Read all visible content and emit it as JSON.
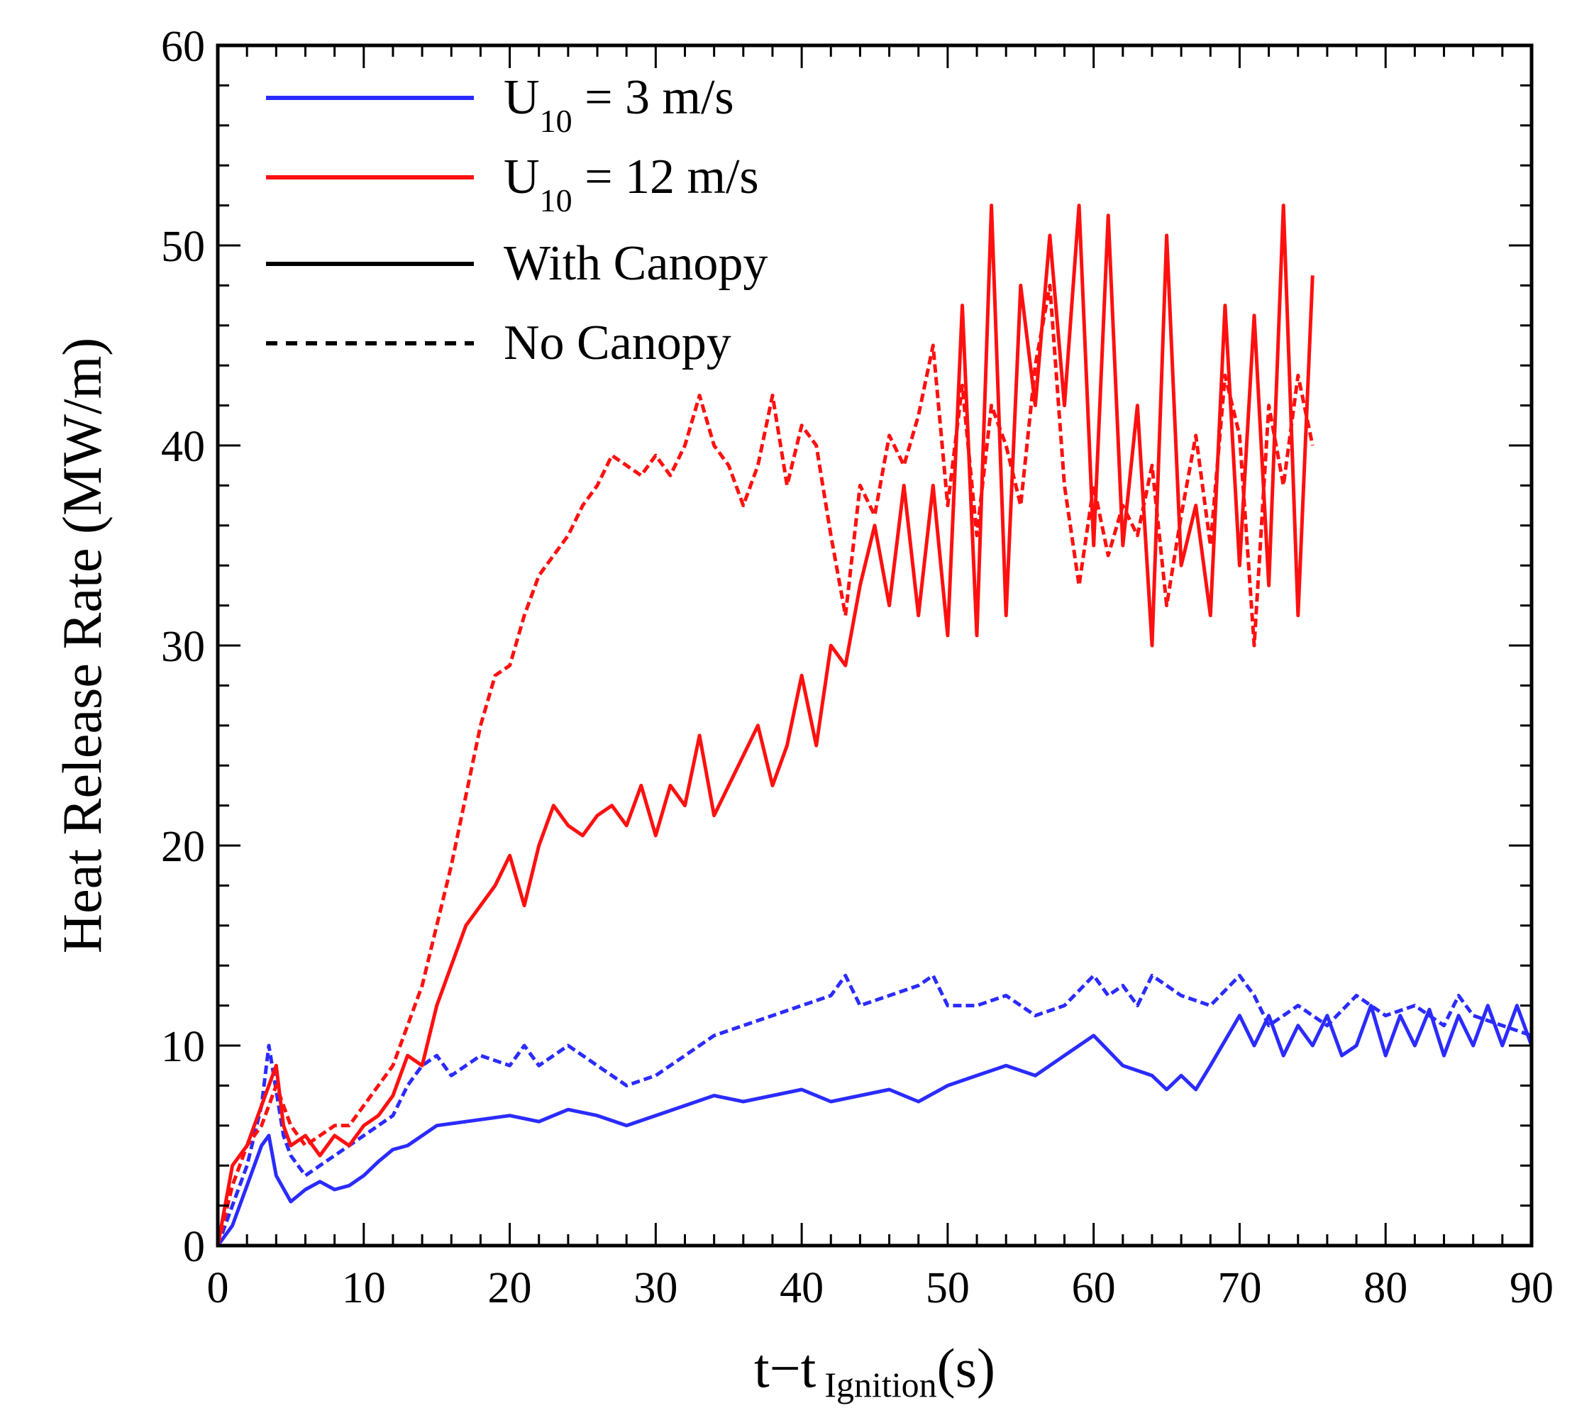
{
  "chart_data": {
    "type": "line",
    "title": "",
    "ylabel": "Heat Release Rate (MW/m)",
    "xlabel": {
      "main": "t−t",
      "sub": "Ignition",
      "unit": "(s)"
    },
    "xlim": [
      0,
      90
    ],
    "ylim": [
      0,
      60
    ],
    "xticks": [
      "0",
      "10",
      "20",
      "30",
      "40",
      "50",
      "60",
      "70",
      "80",
      "90"
    ],
    "yticks": [
      "0",
      "10",
      "20",
      "30",
      "40",
      "50",
      "60"
    ],
    "grid": false,
    "legend_position": "top-left",
    "colors": {
      "low_wind": "#2b2bff",
      "high_wind": "#ff1010",
      "axis": "#000000"
    },
    "legend": [
      {
        "style": "solid",
        "color": "#2b2bff",
        "base": "U",
        "sub": "10",
        "text": " = 3  m/s"
      },
      {
        "style": "solid",
        "color": "#ff1010",
        "base": "U",
        "sub": "10",
        "text": " = 12  m/s"
      },
      {
        "style": "solid",
        "color": "#000000",
        "base": "With Canopy",
        "sub": "",
        "text": ""
      },
      {
        "style": "dashed",
        "color": "#000000",
        "base": "No Canopy",
        "sub": "",
        "text": ""
      }
    ],
    "series": [
      {
        "name": "U10 = 3 m/s, With Canopy",
        "color": "#2b2bff",
        "dash": false,
        "x": [
          0,
          1,
          2,
          3,
          3.5,
          4,
          5,
          6,
          7,
          8,
          9,
          10,
          11,
          12,
          13,
          14,
          15,
          17,
          20,
          22,
          24,
          26,
          28,
          30,
          32,
          34,
          36,
          38,
          40,
          42,
          44,
          46,
          48,
          50,
          52,
          54,
          56,
          58,
          60,
          62,
          64,
          65,
          66,
          67,
          68,
          70,
          71,
          72,
          73,
          74,
          75,
          76,
          77,
          78,
          79,
          80,
          81,
          82,
          83,
          84,
          85,
          86,
          87,
          88,
          89,
          90
        ],
        "y": [
          0,
          1,
          3,
          5,
          5.5,
          3.5,
          2.2,
          2.8,
          3.2,
          2.8,
          3.0,
          3.5,
          4.2,
          4.8,
          5.0,
          5.5,
          6.0,
          6.2,
          6.5,
          6.2,
          6.8,
          6.5,
          6.0,
          6.5,
          7.0,
          7.5,
          7.2,
          7.5,
          7.8,
          7.2,
          7.5,
          7.8,
          7.2,
          8.0,
          8.5,
          9.0,
          8.5,
          9.5,
          10.5,
          9.0,
          8.5,
          7.8,
          8.5,
          7.8,
          9.0,
          11.5,
          10.0,
          11.5,
          9.5,
          11.0,
          10.0,
          11.5,
          9.5,
          10.0,
          12.0,
          9.5,
          11.5,
          10.0,
          11.8,
          9.5,
          11.5,
          10.0,
          12.0,
          10.0,
          12.0,
          10.0
        ]
      },
      {
        "name": "U10 = 3 m/s, No Canopy",
        "color": "#2b2bff",
        "dash": true,
        "x": [
          0,
          1,
          2,
          3,
          3.5,
          4.5,
          5,
          6,
          7,
          8,
          9,
          10,
          12,
          13,
          14,
          15,
          16,
          18,
          20,
          21,
          22,
          24,
          26,
          28,
          30,
          32,
          34,
          36,
          38,
          40,
          42,
          43,
          44,
          46,
          48,
          49,
          50,
          52,
          54,
          56,
          58,
          60,
          61,
          62,
          63,
          64,
          66,
          68,
          70,
          71,
          72,
          74,
          76,
          78,
          80,
          82,
          84,
          85,
          86,
          88,
          90
        ],
        "y": [
          0,
          2,
          4,
          7,
          10,
          5.5,
          4.5,
          3.5,
          4.0,
          4.5,
          5.0,
          5.5,
          6.5,
          8.0,
          9.0,
          9.5,
          8.5,
          9.5,
          9.0,
          10.0,
          9.0,
          10.0,
          9.0,
          8.0,
          8.5,
          9.5,
          10.5,
          11.0,
          11.5,
          12.0,
          12.5,
          13.5,
          12.0,
          12.5,
          13.0,
          13.5,
          12.0,
          12.0,
          12.5,
          11.5,
          12.0,
          13.5,
          12.5,
          13.0,
          12.0,
          13.5,
          12.5,
          12.0,
          13.5,
          12.5,
          11.0,
          12.0,
          11.0,
          12.5,
          11.5,
          12.0,
          11.0,
          12.5,
          11.5,
          11.0,
          10.5
        ]
      },
      {
        "name": "U10 = 12 m/s, With Canopy",
        "color": "#ff1010",
        "dash": false,
        "x": [
          0,
          1,
          2,
          3,
          4,
          4.5,
          5,
          6,
          7,
          8,
          9,
          10,
          11,
          12,
          13,
          14,
          15,
          16,
          17,
          18,
          19,
          20,
          21,
          22,
          23,
          24,
          25,
          26,
          27,
          28,
          29,
          30,
          31,
          32,
          33,
          34,
          35,
          36,
          37,
          38,
          39,
          40,
          41,
          42,
          43,
          44,
          45,
          46,
          47,
          48,
          49,
          50,
          51,
          52,
          53,
          54,
          55,
          56,
          57,
          58,
          59,
          60,
          61,
          62,
          63,
          64,
          65,
          66,
          67,
          68,
          69,
          70,
          71,
          72,
          73,
          74,
          75
        ],
        "y": [
          0,
          4,
          5,
          7,
          9,
          6,
          5,
          5.5,
          4.5,
          5.5,
          5.0,
          6.0,
          6.5,
          7.5,
          9.5,
          9.0,
          12.0,
          14.0,
          16.0,
          17.0,
          18.0,
          19.5,
          17.0,
          20.0,
          22.0,
          21.0,
          20.5,
          21.5,
          22.0,
          21.0,
          23.0,
          20.5,
          23.0,
          22.0,
          25.5,
          21.5,
          23.0,
          24.5,
          26.0,
          23.0,
          25.0,
          28.5,
          25.0,
          30.0,
          29.0,
          33.0,
          36.0,
          32.0,
          38.0,
          31.5,
          38.0,
          30.5,
          47.0,
          30.5,
          52.0,
          31.5,
          48.0,
          42.0,
          50.5,
          42.0,
          52.0,
          35.0,
          51.5,
          35.0,
          42.0,
          30.0,
          50.5,
          34.0,
          37.0,
          31.5,
          47.0,
          34.0,
          46.5,
          33.0,
          52.0,
          31.5,
          48.5
        ]
      },
      {
        "name": "U10 = 12 m/s, No Canopy",
        "color": "#ff1010",
        "dash": true,
        "x": [
          0,
          1,
          2,
          3,
          4,
          5,
          6,
          7,
          8,
          9,
          10,
          12,
          14,
          16,
          18,
          19,
          20,
          21,
          22,
          23,
          24,
          25,
          26,
          27,
          28,
          29,
          30,
          31,
          32,
          33,
          34,
          35,
          36,
          37,
          38,
          39,
          40,
          41,
          42,
          43,
          44,
          45,
          46,
          47,
          48,
          49,
          50,
          51,
          52,
          53,
          54,
          55,
          56,
          57,
          58,
          59,
          60,
          61,
          62,
          63,
          64,
          65,
          66,
          67,
          68,
          69,
          70,
          71,
          72,
          73,
          74,
          75
        ],
        "y": [
          0,
          3,
          5,
          6,
          8,
          6,
          5,
          5.5,
          6,
          6,
          7,
          9,
          13,
          19,
          26,
          28.5,
          29,
          31.5,
          33.5,
          34.5,
          35.5,
          37,
          38,
          39.5,
          39,
          38.5,
          39.5,
          38.5,
          40,
          42.5,
          40,
          39,
          37,
          39,
          42.5,
          38,
          41,
          40,
          35.5,
          31.5,
          38,
          36.5,
          40.5,
          39,
          41.5,
          45,
          37,
          43,
          35.5,
          42,
          40,
          37,
          44,
          48,
          38,
          33,
          38,
          34.5,
          37,
          35.5,
          39,
          32,
          36.5,
          40.5,
          35,
          43.5,
          40.5,
          30,
          42,
          38,
          43.5,
          40
        ]
      }
    ]
  }
}
